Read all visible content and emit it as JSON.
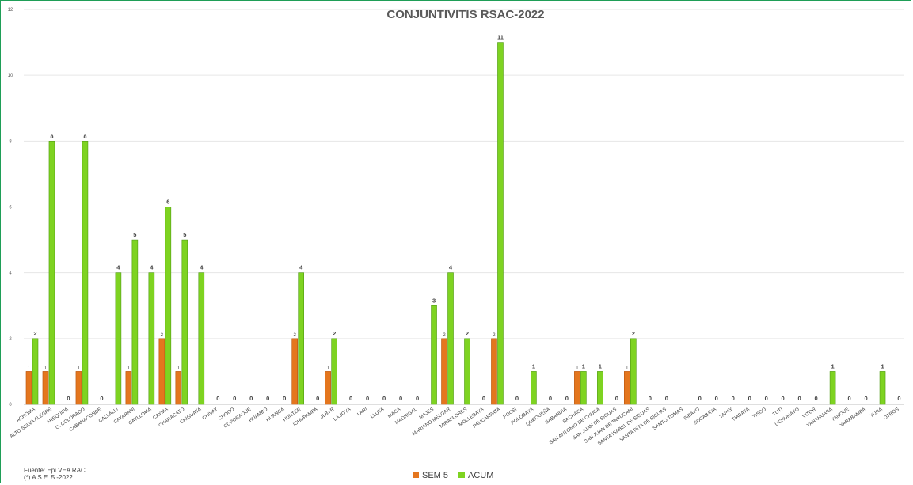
{
  "chart_data": {
    "type": "bar",
    "title": "CONJUNTIVITIS RSAC-2022",
    "ylim": [
      0,
      12
    ],
    "y_ticks": [
      "0",
      "2",
      "4",
      "6",
      "8",
      "10",
      "12"
    ],
    "grid": true,
    "legend_position": "bottom-center",
    "categories": [
      "ACHOMA",
      "ALTO SELVA ALEGRE",
      "AREQUIPA",
      "C. COLORADO",
      "CABANACONDE",
      "CALLALLI",
      "CAYARANI",
      "CAYLLOMA",
      "CAYMA",
      "CHARACATO",
      "CHIGUATA",
      "CHIVAY",
      "CHOCO",
      "COPORAQUE",
      "HUAMBO",
      "HUANCA",
      "HUNTER",
      "ICHUPAMPA",
      "JLBYR",
      "LA JOYA",
      "LARI",
      "LLUTA",
      "MACA",
      "MADRIGAL",
      "MAJES",
      "MARIANO MELGAR",
      "MIRAFLORES",
      "MOLLEBAYA",
      "PAUCARPATA",
      "POCSI",
      "POLOBAYA",
      "QUEQUEÑA",
      "SABANDIA",
      "SACHACA",
      "SAN ANTONIO DE CHUCA",
      "SAN JUAN DE SIGUAS",
      "SAN JUAN DE TARUCANI",
      "SANTA ISABEL DE SIGUAS",
      "SANTA RITA DE SIGUAS",
      "SANTO TOMAS",
      "SIBAYO",
      "SOCABAYA",
      "TAPAY",
      "TIABAYA",
      "TISCO",
      "TUTI",
      "UCHUMAYO",
      "VITOR",
      "YANAHUARA",
      "YANQUE",
      "YARABAMBA",
      "YURA",
      "OTROS"
    ],
    "series": [
      {
        "name": "SEM 5",
        "color": "#e4761e",
        "values": [
          1,
          1,
          null,
          1,
          null,
          null,
          1,
          null,
          2,
          1,
          null,
          null,
          null,
          null,
          null,
          null,
          2,
          null,
          1,
          null,
          null,
          null,
          null,
          null,
          null,
          2,
          null,
          null,
          2,
          null,
          null,
          null,
          null,
          1,
          null,
          null,
          1,
          null,
          null,
          null,
          null,
          null,
          null,
          null,
          null,
          null,
          null,
          null,
          null,
          null,
          null,
          null,
          null
        ]
      },
      {
        "name": "ACUM",
        "color": "#7ed321",
        "values": [
          2,
          8,
          0,
          8,
          0,
          4,
          5,
          4,
          6,
          5,
          4,
          0,
          0,
          0,
          0,
          0,
          4,
          0,
          2,
          0,
          0,
          0,
          0,
          0,
          3,
          4,
          2,
          0,
          11,
          0,
          1,
          0,
          0,
          1,
          1,
          0,
          2,
          0,
          0,
          null,
          0,
          0,
          0,
          0,
          0,
          0,
          0,
          0,
          1,
          0,
          0,
          1,
          0
        ]
      }
    ]
  },
  "footer": {
    "source_line1": "Fuente:  Epi VEA RAC",
    "source_line2": "(*) A S.E. 5 -2022"
  }
}
